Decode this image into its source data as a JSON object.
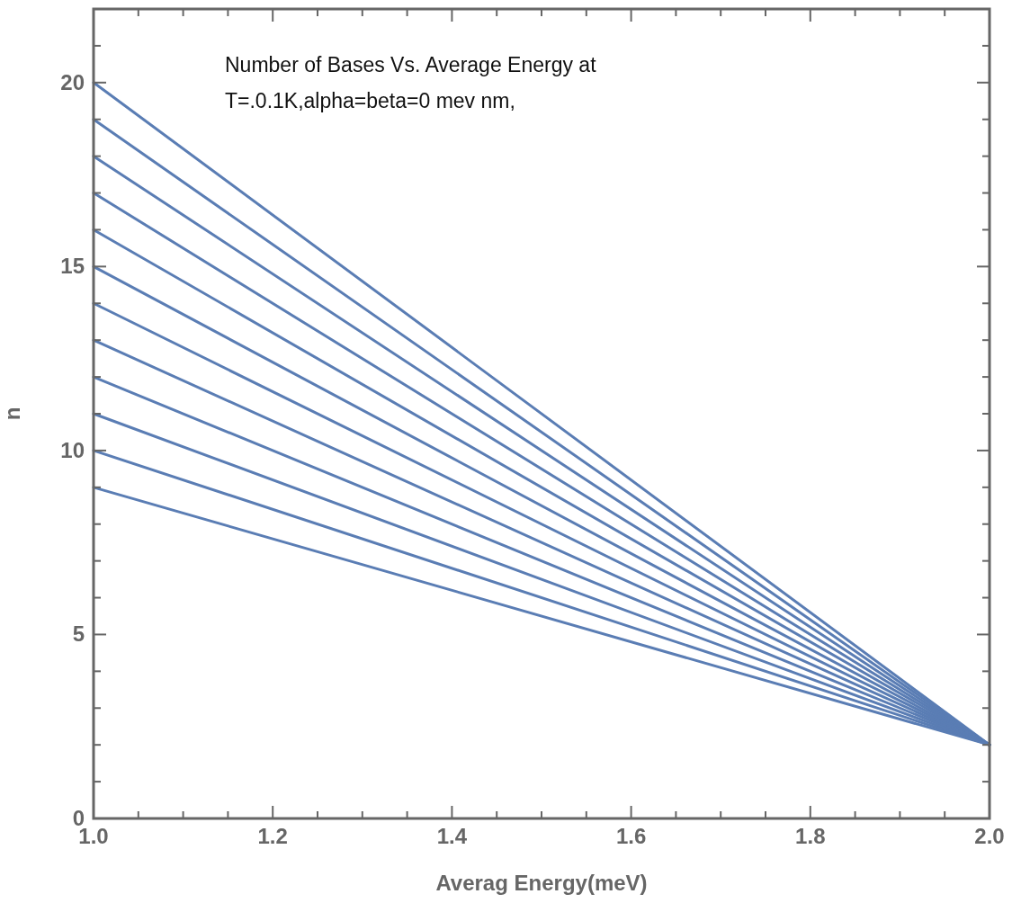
{
  "chart_data": {
    "type": "line",
    "title": "Number of Bases Vs. Average Energy at\nT=.0.1K,alpha=beta=0 mev nm,",
    "xlabel": "Averag Energy(meV)",
    "ylabel": "n",
    "x": [
      1,
      2
    ],
    "xlim": [
      1,
      2
    ],
    "ylim": [
      0,
      22
    ],
    "xticks": [
      {
        "value": 1,
        "label": "1.0"
      },
      {
        "value": 1.05,
        "label": null
      },
      {
        "value": 1.1,
        "label": null
      },
      {
        "value": 1.15,
        "label": null
      },
      {
        "value": 1.2,
        "label": "1.2"
      },
      {
        "value": 1.25,
        "label": null
      },
      {
        "value": 1.3,
        "label": null
      },
      {
        "value": 1.35,
        "label": null
      },
      {
        "value": 1.4,
        "label": "1.4"
      },
      {
        "value": 1.45,
        "label": null
      },
      {
        "value": 1.5,
        "label": null
      },
      {
        "value": 1.55,
        "label": null
      },
      {
        "value": 1.6,
        "label": "1.6"
      },
      {
        "value": 1.65,
        "label": null
      },
      {
        "value": 1.7,
        "label": null
      },
      {
        "value": 1.75,
        "label": null
      },
      {
        "value": 1.8,
        "label": "1.8"
      },
      {
        "value": 1.85,
        "label": null
      },
      {
        "value": 1.9,
        "label": null
      },
      {
        "value": 1.95,
        "label": null
      },
      {
        "value": 2,
        "label": "2.0"
      }
    ],
    "yticks": [
      0,
      {
        "value": 1,
        "label": null
      },
      {
        "value": 2,
        "label": null
      },
      {
        "value": 3,
        "label": null
      },
      {
        "value": 4,
        "label": null
      },
      5,
      {
        "value": 6,
        "label": null
      },
      {
        "value": 7,
        "label": null
      },
      {
        "value": 8,
        "label": null
      },
      {
        "value": 9,
        "label": null
      },
      10,
      {
        "value": 11,
        "label": null
      },
      {
        "value": 12,
        "label": null
      },
      {
        "value": 13,
        "label": null
      },
      {
        "value": 14,
        "label": null
      },
      15,
      {
        "value": 16,
        "label": null
      },
      {
        "value": 17,
        "label": null
      },
      {
        "value": 18,
        "label": null
      },
      {
        "value": 19,
        "label": null
      },
      20,
      {
        "value": 21,
        "label": null
      },
      {
        "value": 22,
        "label": null
      }
    ],
    "grid": false,
    "marker": "none",
    "line_style": "solid",
    "series": [
      {
        "color": "#5a7db4",
        "values": [
          20,
          2
        ]
      },
      {
        "color": "#5a7db4",
        "values": [
          19,
          2
        ]
      },
      {
        "color": "#5a7db4",
        "values": [
          18,
          2
        ]
      },
      {
        "color": "#5a7db4",
        "values": [
          17,
          2
        ]
      },
      {
        "color": "#5a7db4",
        "values": [
          16,
          2
        ]
      },
      {
        "color": "#5a7db4",
        "values": [
          15,
          2
        ]
      },
      {
        "color": "#5a7db4",
        "values": [
          14,
          2
        ]
      },
      {
        "color": "#5a7db4",
        "values": [
          13,
          2
        ]
      },
      {
        "color": "#5a7db4",
        "values": [
          12,
          2
        ]
      },
      {
        "color": "#5a7db4",
        "values": [
          11,
          2
        ]
      },
      {
        "color": "#5a7db4",
        "values": [
          10,
          2
        ]
      },
      {
        "color": "#5a7db4",
        "values": [
          9,
          2
        ]
      }
    ]
  }
}
